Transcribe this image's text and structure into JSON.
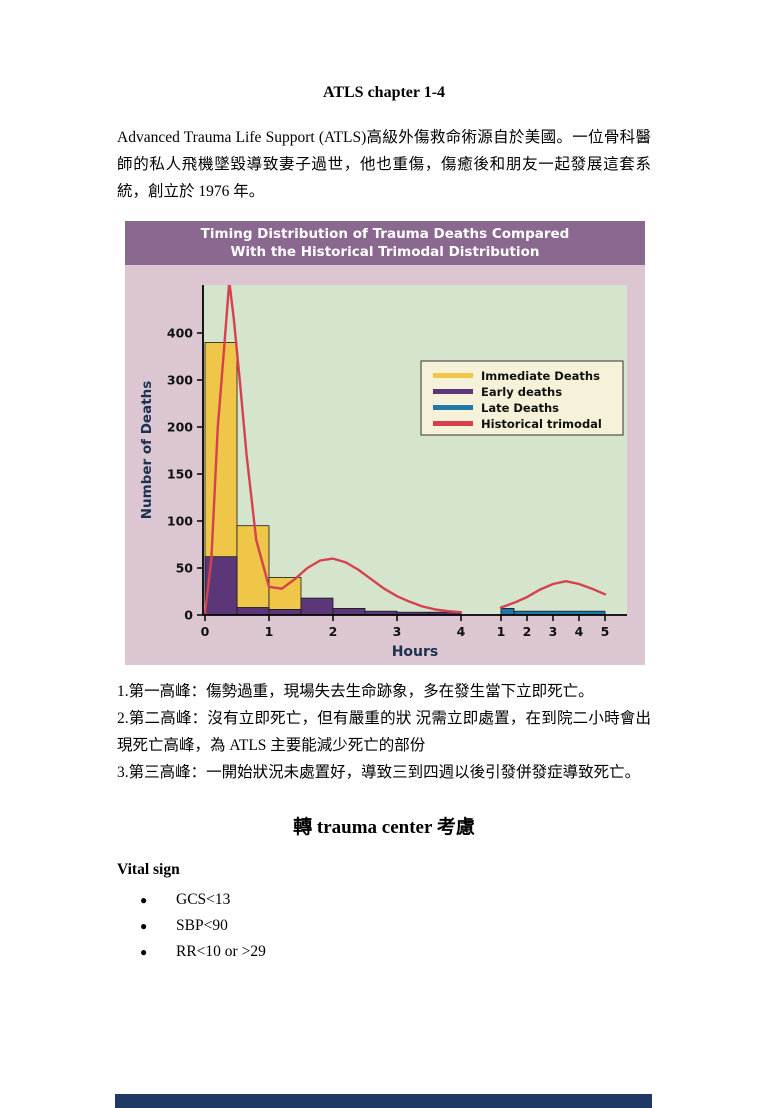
{
  "page": {
    "title": "ATLS chapter 1-4",
    "intro": "Advanced Trauma Life Support (ATLS)高級外傷救命術源自於美國。一位骨科醫師的私人飛機墜毀導致妻子過世，他也重傷，傷癒後和朋友一起發展這套系統，創立於 1976 年。",
    "notes": [
      "1.第一高峰：傷勢過重，現場失去生命跡象，多在發生當下立即死亡。",
      "2.第二高峰：沒有立即死亡，但有嚴重的狀 況需立即處置，在到院二小時會出現死亡高峰，為 ATLS 主要能減少死亡的部份",
      "3.第三高峰：一開始狀況未處置好，導致三到四週以後引發併發症導致死亡。"
    ],
    "section_heading": "轉 trauma center 考慮",
    "vital_sign_label": "Vital sign",
    "bullet": "●",
    "vital_signs": [
      "GCS<13",
      "SBP<90",
      "RR<10 or >29"
    ]
  },
  "chart_data": {
    "type": "bar",
    "title_line1": "Timing Distribution of Trauma Deaths Compared",
    "title_line2": "With the Historical Trimodal Distribution",
    "ylabel": "Number of Deaths",
    "xlabel": "Hours",
    "yticks": [
      0,
      50,
      100,
      150,
      200,
      300,
      400
    ],
    "hours_ticks": [
      0,
      1,
      2,
      3,
      4
    ],
    "weeks_ticks": [
      1,
      2,
      3,
      4,
      5
    ],
    "ylim_note": "piecewise axis: 0-200 step 50, 200-400 step 100",
    "legend_position": "upper right inside plot",
    "legend": [
      {
        "label": "Immediate Deaths",
        "color": "#EFC647"
      },
      {
        "label": "Early deaths",
        "color": "#5B3779"
      },
      {
        "label": "Late Deaths",
        "color": "#1F78A8"
      },
      {
        "label": "Historical trimodal",
        "color": "#D6404F"
      }
    ],
    "series": [
      {
        "name": "Immediate Deaths",
        "axis": "hours",
        "color": "#EFC647",
        "bars": [
          {
            "x0": 0,
            "x1": 0.5,
            "value": 380
          },
          {
            "x0": 0.5,
            "x1": 1,
            "value": 95
          },
          {
            "x0": 1,
            "x1": 1.5,
            "value": 40
          }
        ]
      },
      {
        "name": "Early deaths",
        "axis": "hours",
        "color": "#5B3779",
        "bars": [
          {
            "x0": 0,
            "x1": 0.5,
            "value": 62
          },
          {
            "x0": 0.5,
            "x1": 1,
            "value": 8
          },
          {
            "x0": 1,
            "x1": 1.5,
            "value": 6
          },
          {
            "x0": 1.5,
            "x1": 2,
            "value": 18
          },
          {
            "x0": 2,
            "x1": 2.5,
            "value": 7
          },
          {
            "x0": 2.5,
            "x1": 3,
            "value": 4
          },
          {
            "x0": 3,
            "x1": 3.5,
            "value": 3
          },
          {
            "x0": 3.5,
            "x1": 4,
            "value": 3
          }
        ]
      },
      {
        "name": "Late Deaths",
        "axis": "weeks",
        "color": "#1F78A8",
        "bars": [
          {
            "x0": 1,
            "x1": 1.5,
            "value": 7
          },
          {
            "x0": 1.5,
            "x1": 5,
            "value": 4
          }
        ]
      }
    ],
    "trimodal": {
      "name": "Historical trimodal",
      "color": "#D6404F",
      "hours_points": [
        [
          0,
          2
        ],
        [
          0.1,
          60
        ],
        [
          0.2,
          200
        ],
        [
          0.3,
          370
        ],
        [
          0.38,
          510
        ],
        [
          0.45,
          430
        ],
        [
          0.55,
          290
        ],
        [
          0.65,
          170
        ],
        [
          0.8,
          80
        ],
        [
          1,
          30
        ],
        [
          1.2,
          28
        ],
        [
          1.4,
          38
        ],
        [
          1.6,
          50
        ],
        [
          1.8,
          58
        ],
        [
          2,
          60
        ],
        [
          2.2,
          56
        ],
        [
          2.4,
          48
        ],
        [
          2.6,
          38
        ],
        [
          2.8,
          28
        ],
        [
          3,
          20
        ],
        [
          3.2,
          14
        ],
        [
          3.4,
          9
        ],
        [
          3.6,
          6
        ],
        [
          3.8,
          4
        ],
        [
          4,
          3
        ]
      ],
      "weeks_points": [
        [
          1,
          8
        ],
        [
          1.5,
          13
        ],
        [
          2,
          19
        ],
        [
          2.5,
          27
        ],
        [
          3,
          33
        ],
        [
          3.5,
          36
        ],
        [
          4,
          33
        ],
        [
          4.5,
          28
        ],
        [
          5,
          22
        ]
      ]
    },
    "colors": {
      "header_bg": "#8B6890",
      "chart_bg": "#DCC6D2",
      "plot_bg": "#D5E4CC",
      "legend_bg": "#F6F2DA",
      "axis_label": "#1B3150"
    }
  }
}
